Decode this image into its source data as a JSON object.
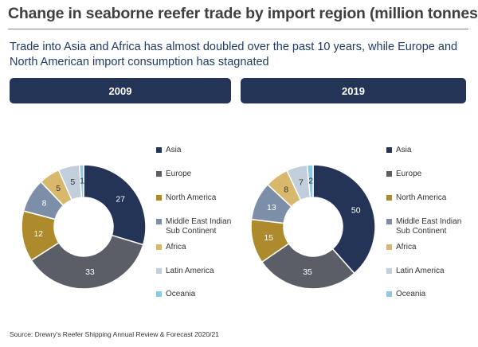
{
  "header": {
    "title": "Change in seaborne reefer trade by import region (million tonnes)",
    "subtitle": "Trade into Asia and Africa has almost doubled over the past 10 years, while Europe and North American import consumption has stagnated"
  },
  "chart_data": [
    {
      "type": "pie",
      "title": "2009",
      "categories": [
        "Asia",
        "Europe",
        "North America",
        "Middle East Indian Sub Continent",
        "Africa",
        "Latin America",
        "Oceania"
      ],
      "values": [
        27,
        33,
        12,
        8,
        5,
        5,
        1
      ],
      "colors": [
        "#243456",
        "#5b5e66",
        "#ad8a2b",
        "#7d8fa8",
        "#d8b96c",
        "#c2cedc",
        "#8ec9e4"
      ],
      "legend_position": "right"
    },
    {
      "type": "pie",
      "title": "2019",
      "categories": [
        "Asia",
        "Europe",
        "North America",
        "Middle East Indian Sub Continent",
        "Africa",
        "Latin America",
        "Oceania"
      ],
      "values": [
        50,
        35,
        15,
        13,
        8,
        7,
        2
      ],
      "colors": [
        "#243456",
        "#5b5e66",
        "#ad8a2b",
        "#7d8fa8",
        "#d8b96c",
        "#c2cedc",
        "#8ec9e4"
      ],
      "legend_position": "right"
    }
  ],
  "legend_labels": [
    [
      "Asia"
    ],
    [
      "Europe"
    ],
    [
      "North America"
    ],
    [
      "Middle East Indian",
      "Sub Continent"
    ],
    [
      "Africa"
    ],
    [
      "Latin America"
    ],
    [
      "Oceania"
    ]
  ],
  "label_colors": [
    "#ffffff",
    "#ffffff",
    "#ffffff",
    "#ffffff",
    "#333333",
    "#333333",
    "#333333"
  ],
  "footer": {
    "source": "Source: Drewry's Reefer Shipping Annual Review & Forecast 2020/21"
  }
}
